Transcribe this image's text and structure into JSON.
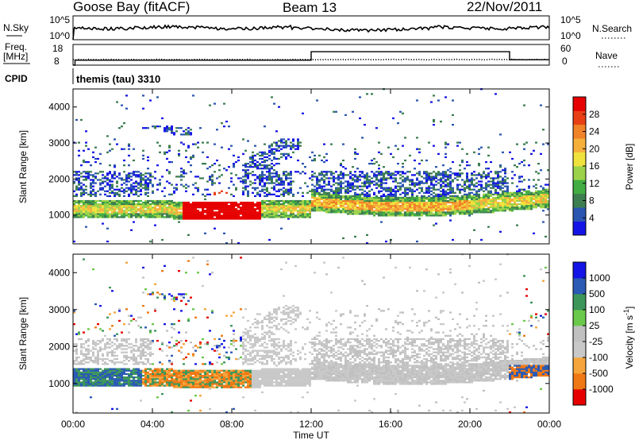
{
  "header": {
    "station": "Goose Bay (fitACF)",
    "beam": "Beam 13",
    "date": "22/Nov/2011"
  },
  "noise_panel": {
    "left_label": "N.Sky",
    "right_label": "N.Search",
    "left_ticks": [
      "10^5",
      "10^0"
    ],
    "right_ticks": [
      "10^5",
      "10^0"
    ]
  },
  "freq_panel": {
    "left_label_line1": "Freq.",
    "left_label_line2": "[MHz]",
    "right_label": "Nave",
    "left_ticks": [
      "18",
      "8"
    ],
    "right_ticks": [
      "60",
      "0"
    ]
  },
  "cpid": {
    "label": "CPID",
    "value": "themis (tau) 3310"
  },
  "colors": {
    "power_scale": [
      "#1414e6",
      "#2a55b0",
      "#3c7e50",
      "#42ad42",
      "#9cd24a",
      "#f0e23c",
      "#f5b03c",
      "#f08228",
      "#e84014",
      "#e60000"
    ],
    "velocity_scale": [
      "#e60000",
      "#f07814",
      "#f5a53c",
      "#c8c8c8",
      "#c0c0c0",
      "#6ac84a",
      "#3c965a",
      "#2a5ab4",
      "#1414e6"
    ]
  },
  "chart_data": [
    {
      "type": "heatmap",
      "name": "power",
      "xlabel": "",
      "ylabel": "Slant Range [km]",
      "xlim": [
        0,
        24
      ],
      "ylim": [
        200,
        4500
      ],
      "yticks": [
        1000,
        2000,
        3000,
        4000
      ],
      "colorbar": {
        "label": "Power [dB]",
        "range": [
          0,
          32
        ],
        "ticks": [
          4,
          8,
          12,
          16,
          20,
          24,
          28
        ]
      }
    },
    {
      "type": "heatmap",
      "name": "velocity",
      "xlabel": "Time UT",
      "ylabel": "Slant Range [km]",
      "xlim": [
        0,
        24
      ],
      "ylim": [
        200,
        4500
      ],
      "xticks": [
        "00:00",
        "04:00",
        "08:00",
        "12:00",
        "16:00",
        "20:00",
        "00:00"
      ],
      "yticks": [
        1000,
        2000,
        3000,
        4000
      ],
      "colorbar": {
        "label": "Velocity [m s^-1]",
        "ticks": [
          "1000",
          "500",
          "100",
          "25",
          "-25",
          "-100",
          "-500",
          "-1000"
        ]
      }
    },
    {
      "type": "line",
      "name": "freq",
      "series": [
        {
          "x": [
            0,
            0.1,
            0.1,
            12,
            12,
            22,
            22,
            24
          ],
          "y": [
            8,
            8,
            10.4,
            10.4,
            14.5,
            14.5,
            10.6,
            10.6
          ]
        }
      ],
      "ylim": [
        8,
        18
      ]
    }
  ]
}
